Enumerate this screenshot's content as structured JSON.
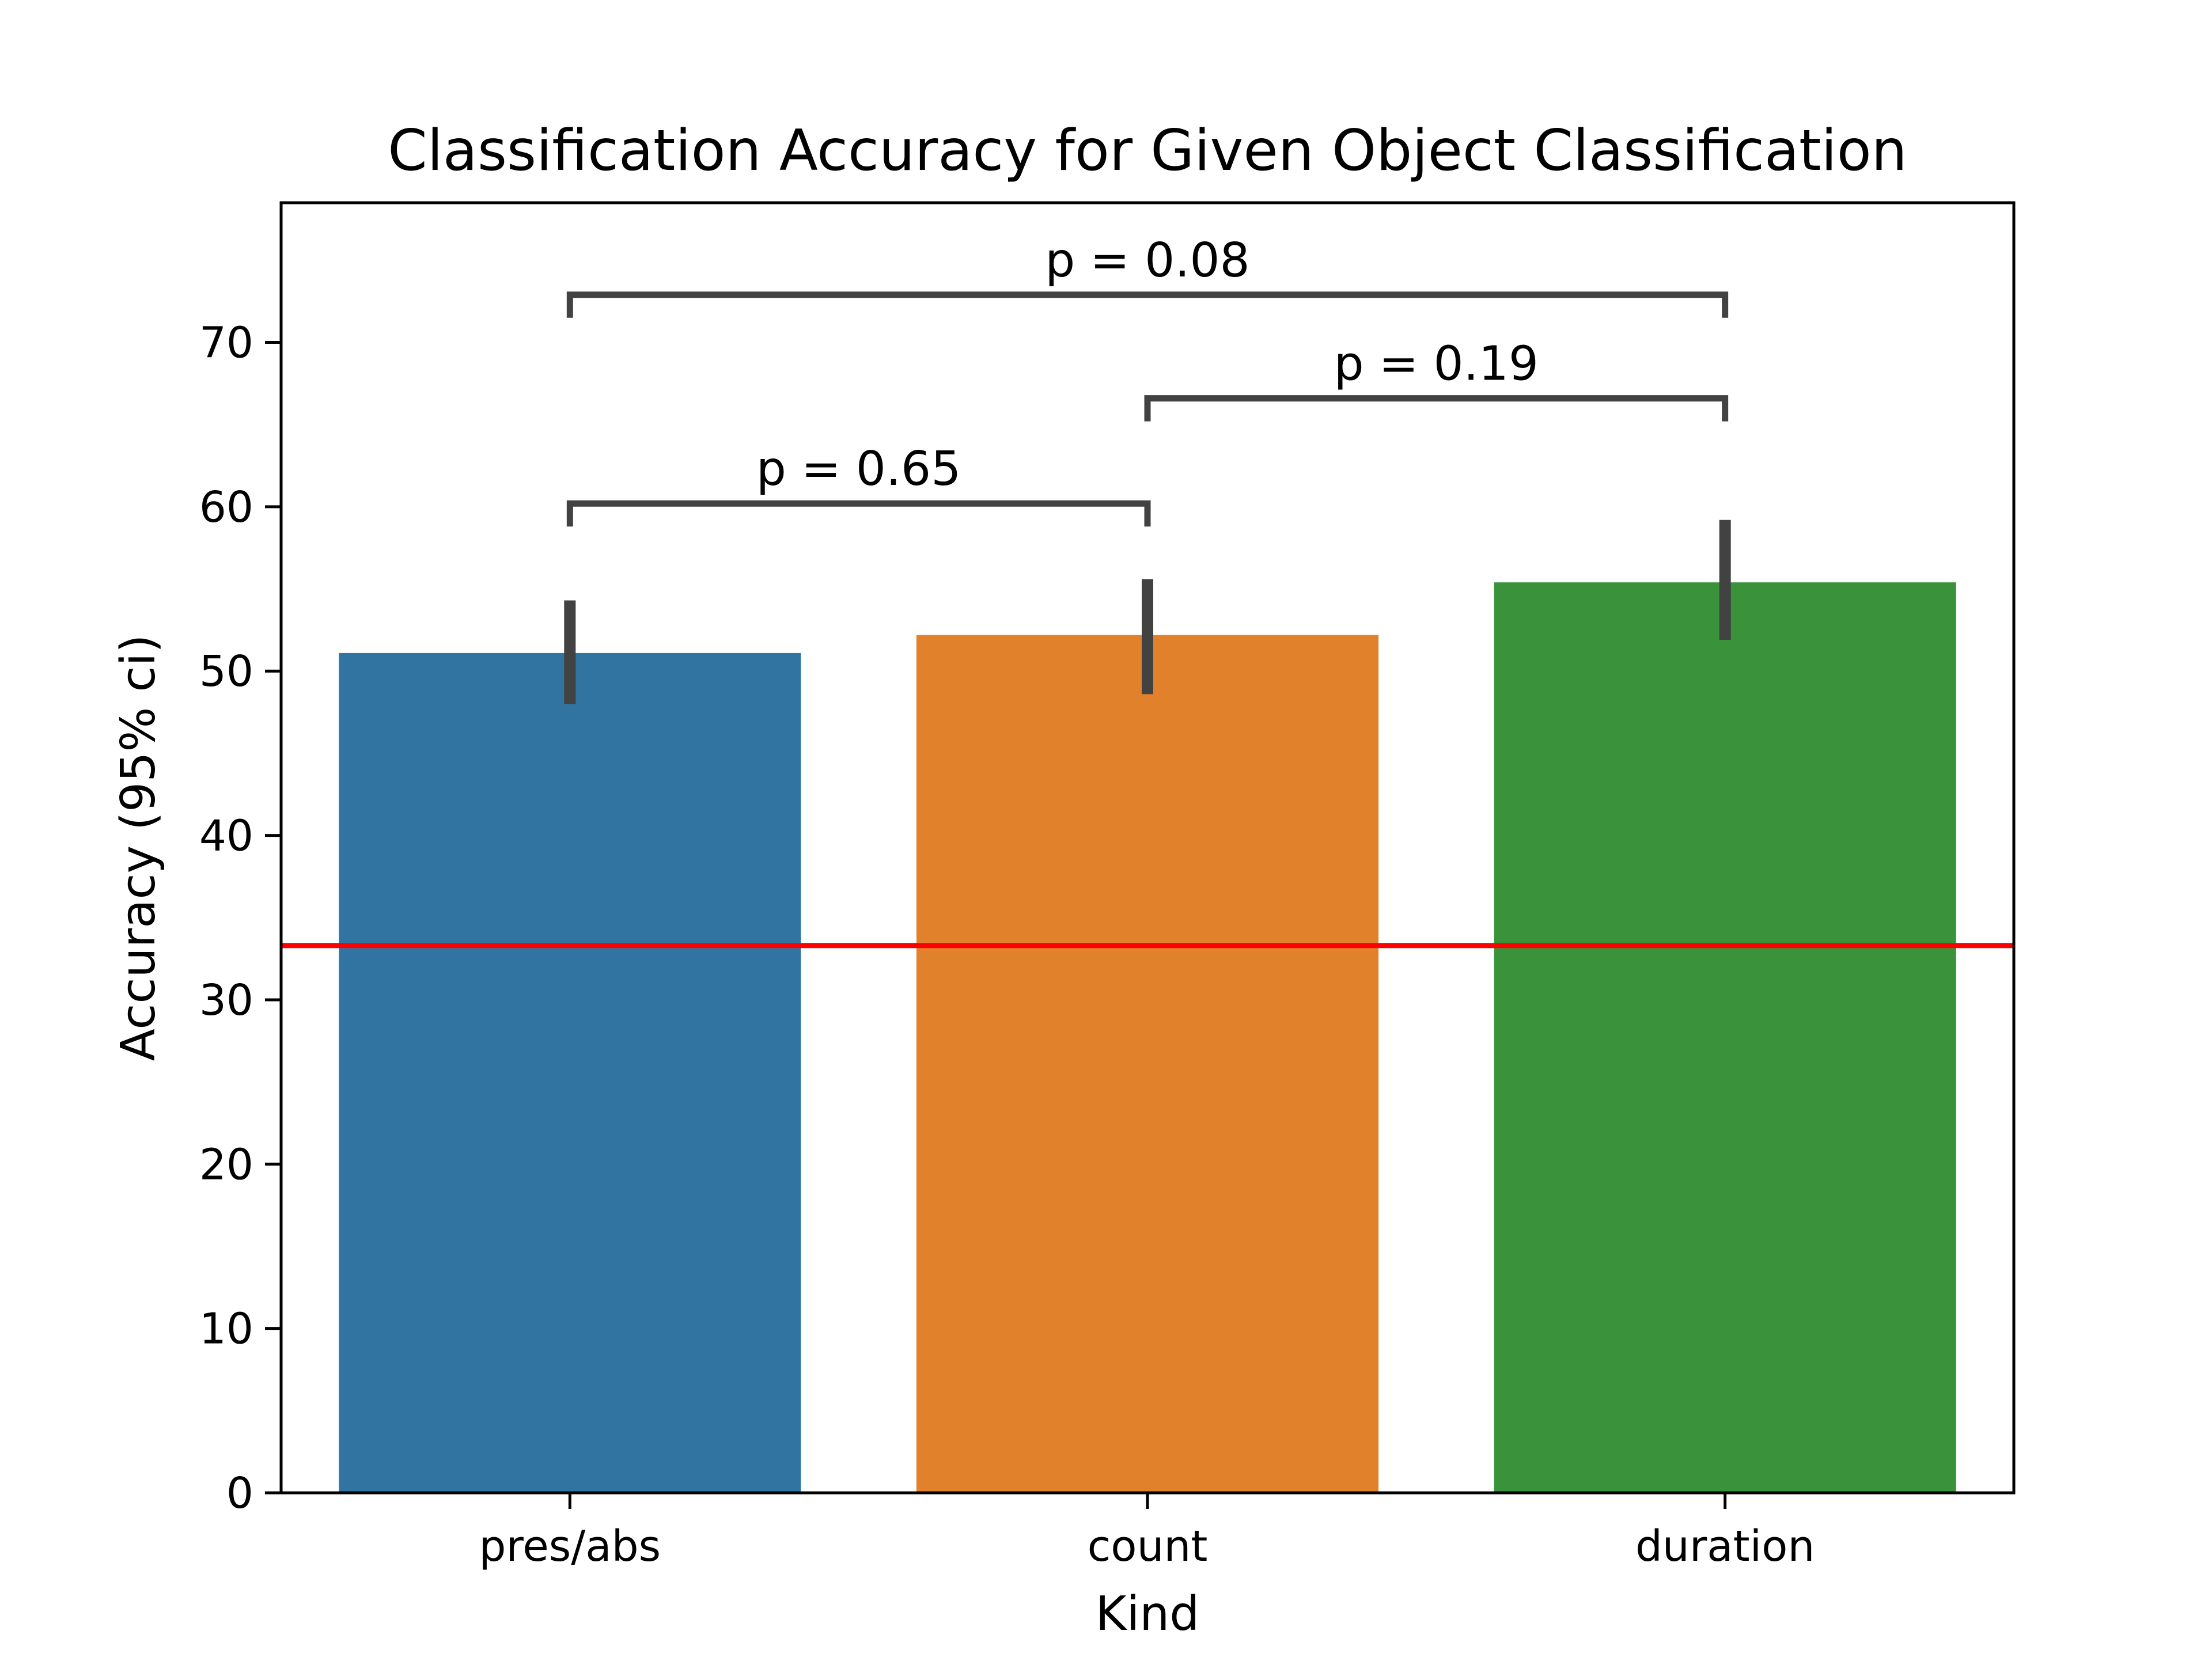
{
  "chart_data": {
    "type": "bar",
    "title": "Classification Accuracy for Given Object Classification",
    "xlabel": "Kind",
    "ylabel": "Accuracy (95% ci)",
    "categories": [
      "pres/abs",
      "count",
      "duration"
    ],
    "values": [
      51.1,
      52.2,
      55.4
    ],
    "ci": [
      [
        48.0,
        54.3
      ],
      [
        48.6,
        55.6
      ],
      [
        51.9,
        59.2
      ]
    ],
    "colors": [
      "#3274a1",
      "#e1812c",
      "#3a923a"
    ],
    "ylim": [
      0,
      78.5
    ],
    "yticks": [
      0,
      10,
      20,
      30,
      40,
      50,
      60,
      70
    ],
    "reference_line": {
      "value": 33.3,
      "color": "#ff0000"
    },
    "significance": [
      {
        "from": 0,
        "to": 1,
        "label": "p = 0.65",
        "y": 60.2
      },
      {
        "from": 1,
        "to": 2,
        "label": "p = 0.19",
        "y": 66.6
      },
      {
        "from": 0,
        "to": 2,
        "label": "p = 0.08",
        "y": 72.9
      }
    ],
    "grid": false,
    "legend": "none"
  }
}
